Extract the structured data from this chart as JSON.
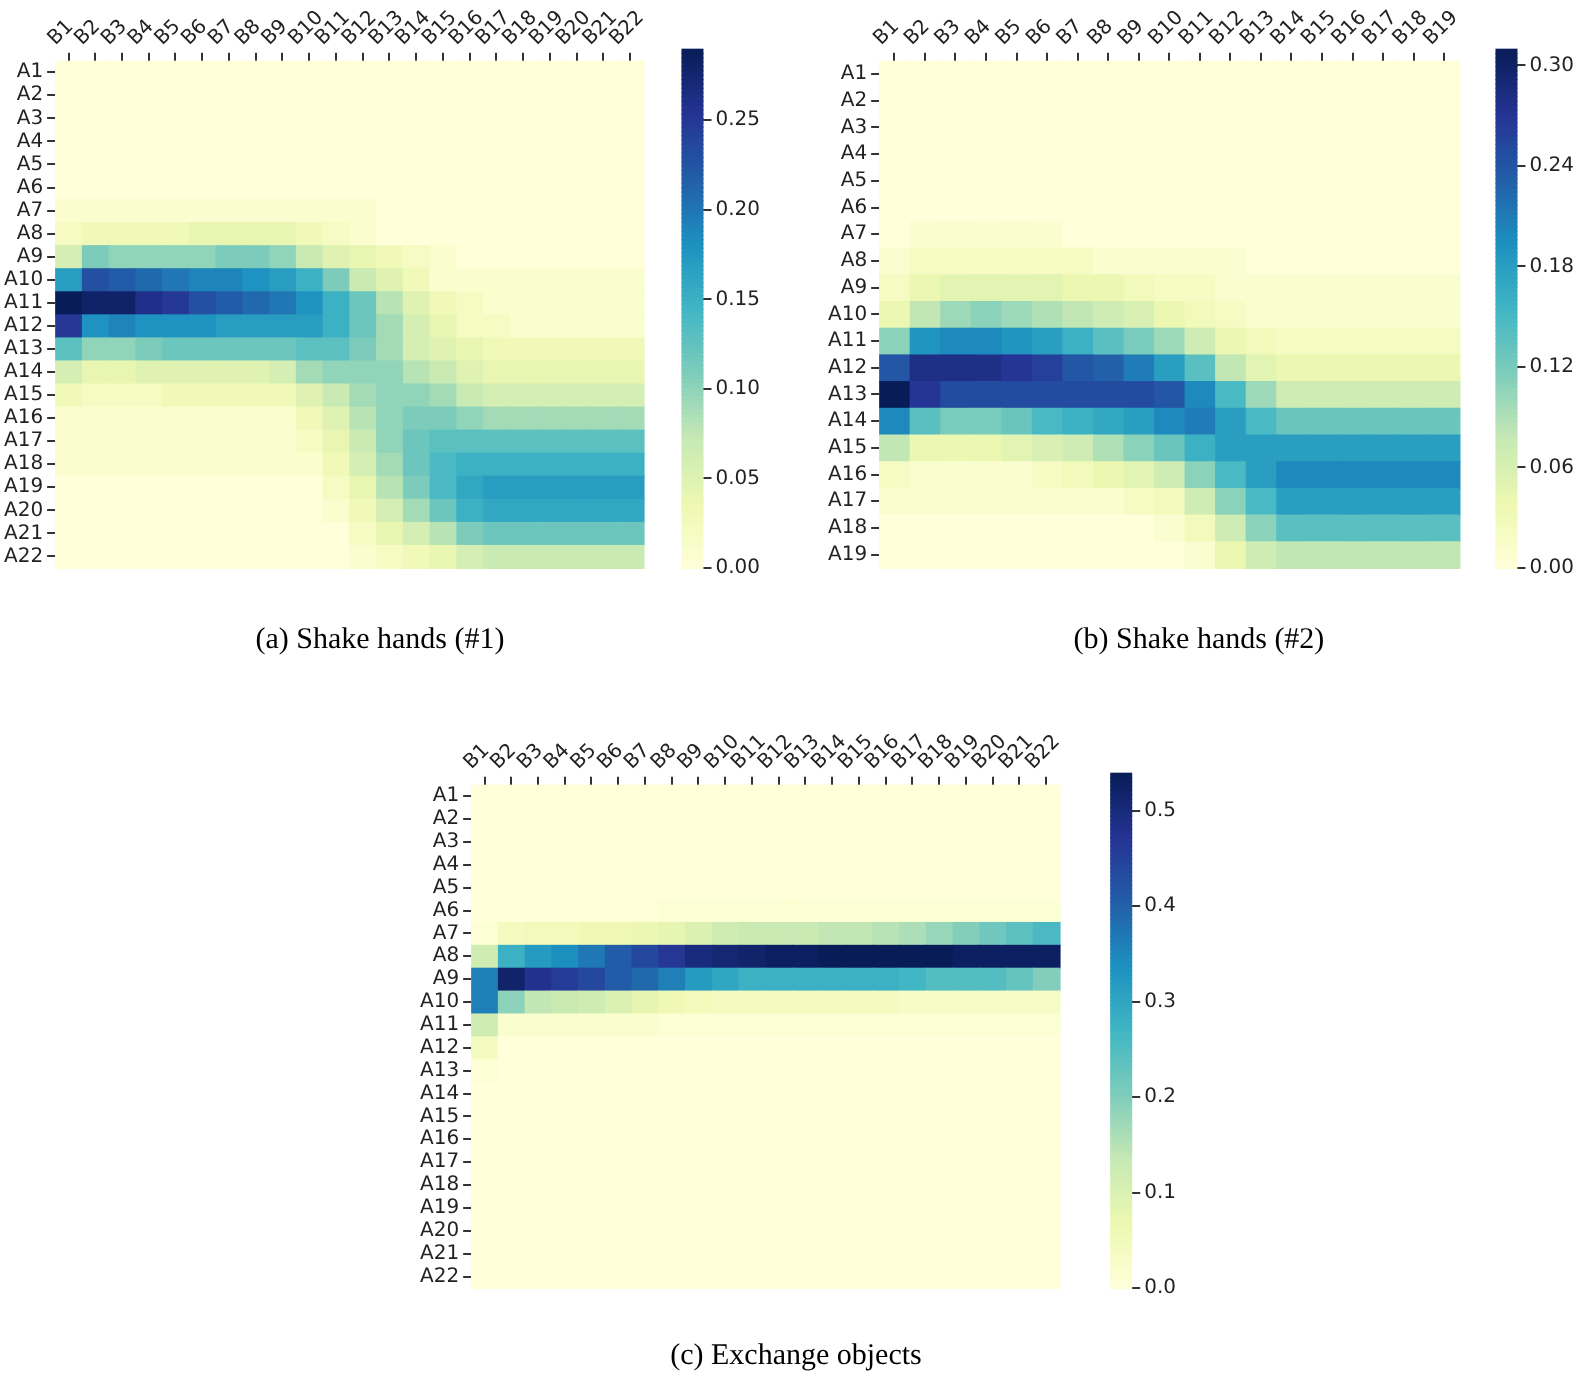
{
  "chart_data": [
    {
      "type": "heatmap",
      "title": "(a)  Shake hands (#1)",
      "categories": [
        "B1",
        "B2",
        "B3",
        "B4",
        "B5",
        "B6",
        "B7",
        "B8",
        "B9",
        "B10",
        "B11",
        "B12",
        "B13",
        "B14",
        "B15",
        "B16",
        "B17",
        "B18",
        "B19",
        "B20",
        "B21",
        "B22"
      ],
      "y_categories": [
        "A1",
        "A2",
        "A3",
        "A4",
        "A5",
        "A6",
        "A7",
        "A8",
        "A9",
        "A10",
        "A11",
        "A12",
        "A13",
        "A14",
        "A15",
        "A16",
        "A17",
        "A18",
        "A19",
        "A20",
        "A21",
        "A22"
      ],
      "clim": [
        0,
        0.29
      ],
      "cticks": [
        {
          "value": 0,
          "label": "0.00"
        },
        {
          "value": 0.05,
          "label": "0.05"
        },
        {
          "value": 0.1,
          "label": "0.10"
        },
        {
          "value": 0.15,
          "label": "0.15"
        },
        {
          "value": 0.2,
          "label": "0.20"
        },
        {
          "value": 0.25,
          "label": "0.25"
        }
      ],
      "cells": [
        [
          0,
          0,
          0,
          0,
          0,
          0,
          0,
          0,
          0,
          0,
          0,
          0,
          0,
          0,
          0,
          0,
          0,
          0,
          0,
          0,
          0,
          0
        ],
        [
          0,
          0,
          0,
          0,
          0,
          0,
          0,
          0,
          0,
          0,
          0,
          0,
          0,
          0,
          0,
          0,
          0,
          0,
          0,
          0,
          0,
          0
        ],
        [
          0,
          0,
          0,
          0,
          0,
          0,
          0,
          0,
          0,
          0,
          0,
          0,
          0,
          0,
          0,
          0,
          0,
          0,
          0,
          0,
          0,
          0
        ],
        [
          0,
          0,
          0,
          0,
          0,
          0,
          0,
          0,
          0,
          0,
          0,
          0,
          0,
          0,
          0,
          0,
          0,
          0,
          0,
          0,
          0,
          0
        ],
        [
          0,
          0,
          0,
          0,
          0,
          0,
          0,
          0,
          0,
          0,
          0,
          0,
          0,
          0,
          0,
          0,
          0,
          0,
          0,
          0,
          0,
          0
        ],
        [
          0,
          0,
          0,
          0,
          0,
          0,
          0,
          0,
          0,
          0,
          0,
          0,
          0,
          0,
          0,
          0,
          0,
          0,
          0,
          0,
          0,
          0
        ],
        [
          0.01,
          0.01,
          0.01,
          0.01,
          0.01,
          0.01,
          0.01,
          0.01,
          0.01,
          0.01,
          0.01,
          0.01,
          0,
          0,
          0,
          0,
          0,
          0,
          0,
          0,
          0,
          0
        ],
        [
          0.02,
          0.03,
          0.03,
          0.03,
          0.03,
          0.04,
          0.04,
          0.04,
          0.04,
          0.03,
          0.02,
          0.01,
          0,
          0,
          0,
          0,
          0,
          0,
          0,
          0,
          0,
          0
        ],
        [
          0.06,
          0.11,
          0.1,
          0.1,
          0.1,
          0.1,
          0.11,
          0.11,
          0.1,
          0.07,
          0.05,
          0.04,
          0.03,
          0.02,
          0.01,
          0,
          0,
          0,
          0,
          0,
          0,
          0
        ],
        [
          0.17,
          0.23,
          0.22,
          0.21,
          0.2,
          0.19,
          0.19,
          0.18,
          0.17,
          0.15,
          0.11,
          0.07,
          0.05,
          0.03,
          0.01,
          0.01,
          0.01,
          0.01,
          0.01,
          0.01,
          0.01,
          0.01
        ],
        [
          0.29,
          0.28,
          0.28,
          0.26,
          0.25,
          0.23,
          0.22,
          0.21,
          0.2,
          0.18,
          0.15,
          0.12,
          0.08,
          0.05,
          0.03,
          0.02,
          0.01,
          0.01,
          0.01,
          0.01,
          0.01,
          0.01
        ],
        [
          0.25,
          0.18,
          0.19,
          0.18,
          0.18,
          0.18,
          0.17,
          0.17,
          0.17,
          0.17,
          0.15,
          0.12,
          0.09,
          0.06,
          0.04,
          0.02,
          0.02,
          0.01,
          0.01,
          0.01,
          0.01,
          0.01
        ],
        [
          0.13,
          0.1,
          0.1,
          0.11,
          0.12,
          0.12,
          0.12,
          0.12,
          0.12,
          0.13,
          0.13,
          0.11,
          0.09,
          0.06,
          0.05,
          0.04,
          0.03,
          0.03,
          0.03,
          0.03,
          0.03,
          0.03
        ],
        [
          0.06,
          0.04,
          0.04,
          0.05,
          0.05,
          0.05,
          0.05,
          0.05,
          0.06,
          0.09,
          0.1,
          0.1,
          0.1,
          0.08,
          0.07,
          0.05,
          0.04,
          0.04,
          0.04,
          0.04,
          0.04,
          0.04
        ],
        [
          0.03,
          0.02,
          0.02,
          0.02,
          0.03,
          0.03,
          0.03,
          0.03,
          0.03,
          0.05,
          0.07,
          0.09,
          0.1,
          0.1,
          0.09,
          0.07,
          0.06,
          0.06,
          0.06,
          0.06,
          0.06,
          0.06
        ],
        [
          0.01,
          0.01,
          0.01,
          0.01,
          0.01,
          0.01,
          0.01,
          0.01,
          0.01,
          0.03,
          0.05,
          0.08,
          0.1,
          0.11,
          0.11,
          0.1,
          0.09,
          0.09,
          0.09,
          0.09,
          0.09,
          0.09
        ],
        [
          0.01,
          0.01,
          0.01,
          0.01,
          0.01,
          0.01,
          0.01,
          0.01,
          0.01,
          0.02,
          0.04,
          0.07,
          0.1,
          0.12,
          0.13,
          0.13,
          0.13,
          0.13,
          0.13,
          0.13,
          0.13,
          0.13
        ],
        [
          0.01,
          0.01,
          0.01,
          0.01,
          0.01,
          0.01,
          0.01,
          0.01,
          0.01,
          0.01,
          0.03,
          0.06,
          0.09,
          0.12,
          0.14,
          0.15,
          0.15,
          0.15,
          0.15,
          0.15,
          0.15,
          0.15
        ],
        [
          0,
          0,
          0,
          0,
          0,
          0,
          0,
          0,
          0,
          0,
          0.02,
          0.04,
          0.08,
          0.11,
          0.14,
          0.16,
          0.17,
          0.17,
          0.17,
          0.17,
          0.17,
          0.17
        ],
        [
          0,
          0,
          0,
          0,
          0,
          0,
          0,
          0,
          0,
          0,
          0.01,
          0.03,
          0.06,
          0.09,
          0.12,
          0.15,
          0.16,
          0.16,
          0.16,
          0.16,
          0.16,
          0.16
        ],
        [
          0,
          0,
          0,
          0,
          0,
          0,
          0,
          0,
          0,
          0,
          0,
          0.02,
          0.04,
          0.06,
          0.08,
          0.11,
          0.12,
          0.12,
          0.12,
          0.12,
          0.12,
          0.12
        ],
        [
          0,
          0,
          0,
          0,
          0,
          0,
          0,
          0,
          0,
          0,
          0,
          0.01,
          0.02,
          0.03,
          0.04,
          0.06,
          0.07,
          0.07,
          0.07,
          0.07,
          0.07,
          0.07
        ]
      ]
    },
    {
      "type": "heatmap",
      "title": "(b)  Shake hands (#2)",
      "categories": [
        "B1",
        "B2",
        "B3",
        "B4",
        "B5",
        "B6",
        "B7",
        "B8",
        "B9",
        "B10",
        "B11",
        "B12",
        "B13",
        "B14",
        "B15",
        "B16",
        "B17",
        "B18",
        "B19"
      ],
      "y_categories": [
        "A1",
        "A2",
        "A3",
        "A4",
        "A5",
        "A6",
        "A7",
        "A8",
        "A9",
        "A10",
        "A11",
        "A12",
        "A13",
        "A14",
        "A15",
        "A16",
        "A17",
        "A18",
        "A19"
      ],
      "clim": [
        0,
        0.31
      ],
      "cticks": [
        {
          "value": 0,
          "label": "0.00"
        },
        {
          "value": 0.06,
          "label": "0.06"
        },
        {
          "value": 0.12,
          "label": "0.12"
        },
        {
          "value": 0.18,
          "label": "0.18"
        },
        {
          "value": 0.24,
          "label": "0.24"
        },
        {
          "value": 0.3,
          "label": "0.30"
        }
      ],
      "cells": [
        [
          0,
          0,
          0,
          0,
          0,
          0,
          0,
          0,
          0,
          0,
          0,
          0,
          0,
          0,
          0,
          0,
          0,
          0,
          0
        ],
        [
          0,
          0,
          0,
          0,
          0,
          0,
          0,
          0,
          0,
          0,
          0,
          0,
          0,
          0,
          0,
          0,
          0,
          0,
          0
        ],
        [
          0,
          0,
          0,
          0,
          0,
          0,
          0,
          0,
          0,
          0,
          0,
          0,
          0,
          0,
          0,
          0,
          0,
          0,
          0
        ],
        [
          0,
          0,
          0,
          0,
          0,
          0,
          0,
          0,
          0,
          0,
          0,
          0,
          0,
          0,
          0,
          0,
          0,
          0,
          0
        ],
        [
          0,
          0,
          0,
          0,
          0,
          0,
          0,
          0,
          0,
          0,
          0,
          0,
          0,
          0,
          0,
          0,
          0,
          0,
          0
        ],
        [
          0,
          0,
          0,
          0,
          0,
          0,
          0,
          0,
          0,
          0,
          0,
          0,
          0,
          0,
          0,
          0,
          0,
          0,
          0
        ],
        [
          0,
          0.01,
          0.01,
          0.01,
          0.01,
          0.01,
          0,
          0,
          0,
          0,
          0,
          0,
          0,
          0,
          0,
          0,
          0,
          0,
          0
        ],
        [
          0.01,
          0.02,
          0.02,
          0.02,
          0.02,
          0.02,
          0.02,
          0.01,
          0.01,
          0.01,
          0.01,
          0.01,
          0,
          0,
          0,
          0,
          0,
          0,
          0
        ],
        [
          0.02,
          0.04,
          0.05,
          0.05,
          0.05,
          0.05,
          0.04,
          0.04,
          0.03,
          0.02,
          0.02,
          0.01,
          0.01,
          0.01,
          0.01,
          0.01,
          0.01,
          0.01,
          0.01
        ],
        [
          0.04,
          0.08,
          0.1,
          0.11,
          0.1,
          0.09,
          0.08,
          0.07,
          0.06,
          0.04,
          0.03,
          0.02,
          0.01,
          0.01,
          0.01,
          0.01,
          0.01,
          0.01,
          0.01
        ],
        [
          0.11,
          0.19,
          0.2,
          0.2,
          0.19,
          0.18,
          0.16,
          0.14,
          0.12,
          0.1,
          0.07,
          0.04,
          0.03,
          0.02,
          0.02,
          0.02,
          0.02,
          0.02,
          0.02
        ],
        [
          0.24,
          0.28,
          0.28,
          0.28,
          0.27,
          0.26,
          0.24,
          0.23,
          0.21,
          0.18,
          0.14,
          0.08,
          0.05,
          0.04,
          0.04,
          0.04,
          0.04,
          0.04,
          0.04
        ],
        [
          0.31,
          0.27,
          0.25,
          0.25,
          0.25,
          0.25,
          0.25,
          0.25,
          0.25,
          0.24,
          0.2,
          0.15,
          0.1,
          0.07,
          0.07,
          0.07,
          0.07,
          0.07,
          0.07
        ],
        [
          0.2,
          0.14,
          0.12,
          0.12,
          0.13,
          0.15,
          0.16,
          0.17,
          0.18,
          0.2,
          0.21,
          0.18,
          0.15,
          0.13,
          0.13,
          0.13,
          0.13,
          0.13,
          0.13
        ],
        [
          0.08,
          0.04,
          0.04,
          0.04,
          0.05,
          0.06,
          0.07,
          0.09,
          0.11,
          0.13,
          0.16,
          0.18,
          0.18,
          0.18,
          0.18,
          0.18,
          0.18,
          0.18,
          0.18
        ],
        [
          0.02,
          0.01,
          0.01,
          0.01,
          0.01,
          0.02,
          0.03,
          0.04,
          0.05,
          0.07,
          0.11,
          0.15,
          0.18,
          0.2,
          0.2,
          0.2,
          0.2,
          0.2,
          0.2
        ],
        [
          0.01,
          0.01,
          0.01,
          0.01,
          0.01,
          0.01,
          0.01,
          0.01,
          0.02,
          0.03,
          0.07,
          0.11,
          0.15,
          0.18,
          0.18,
          0.18,
          0.18,
          0.18,
          0.18
        ],
        [
          0,
          0,
          0,
          0,
          0,
          0,
          0,
          0,
          0,
          0.01,
          0.03,
          0.07,
          0.11,
          0.14,
          0.14,
          0.14,
          0.14,
          0.14,
          0.14
        ],
        [
          0,
          0,
          0,
          0,
          0,
          0,
          0,
          0,
          0,
          0,
          0.01,
          0.04,
          0.07,
          0.08,
          0.08,
          0.08,
          0.08,
          0.08,
          0.08
        ]
      ]
    },
    {
      "type": "heatmap",
      "title": "(c)  Exchange objects",
      "categories": [
        "B1",
        "B2",
        "B3",
        "B4",
        "B5",
        "B6",
        "B7",
        "B8",
        "B9",
        "B10",
        "B11",
        "B12",
        "B13",
        "B14",
        "B15",
        "B16",
        "B17",
        "B18",
        "B19",
        "B20",
        "B21",
        "B22"
      ],
      "y_categories": [
        "A1",
        "A2",
        "A3",
        "A4",
        "A5",
        "A6",
        "A7",
        "A8",
        "A9",
        "A10",
        "A11",
        "A12",
        "A13",
        "A14",
        "A15",
        "A16",
        "A17",
        "A18",
        "A19",
        "A20",
        "A21",
        "A22"
      ],
      "clim": [
        0,
        0.54
      ],
      "cticks": [
        {
          "value": 0,
          "label": "0.0"
        },
        {
          "value": 0.1,
          "label": "0.1"
        },
        {
          "value": 0.2,
          "label": "0.2"
        },
        {
          "value": 0.3,
          "label": "0.3"
        },
        {
          "value": 0.4,
          "label": "0.4"
        },
        {
          "value": 0.5,
          "label": "0.5"
        }
      ],
      "cells": [
        [
          0,
          0,
          0,
          0,
          0,
          0,
          0,
          0,
          0,
          0,
          0,
          0,
          0,
          0,
          0,
          0,
          0,
          0,
          0,
          0,
          0,
          0
        ],
        [
          0,
          0,
          0,
          0,
          0,
          0,
          0,
          0,
          0,
          0,
          0,
          0,
          0,
          0,
          0,
          0,
          0,
          0,
          0,
          0,
          0,
          0
        ],
        [
          0,
          0,
          0,
          0,
          0,
          0,
          0,
          0,
          0,
          0,
          0,
          0,
          0,
          0,
          0,
          0,
          0,
          0,
          0,
          0,
          0,
          0
        ],
        [
          0,
          0,
          0,
          0,
          0,
          0,
          0,
          0,
          0,
          0,
          0,
          0,
          0,
          0,
          0,
          0,
          0,
          0,
          0,
          0,
          0,
          0
        ],
        [
          0,
          0,
          0,
          0,
          0,
          0,
          0,
          0,
          0,
          0,
          0,
          0,
          0,
          0,
          0,
          0,
          0,
          0,
          0,
          0,
          0,
          0
        ],
        [
          0,
          0,
          0,
          0,
          0,
          0,
          0,
          0.01,
          0.01,
          0.01,
          0.01,
          0.01,
          0.01,
          0.01,
          0.01,
          0.01,
          0.01,
          0.01,
          0.01,
          0.01,
          0.01,
          0.01
        ],
        [
          0.01,
          0.04,
          0.05,
          0.05,
          0.06,
          0.06,
          0.07,
          0.08,
          0.1,
          0.12,
          0.13,
          0.13,
          0.13,
          0.14,
          0.14,
          0.15,
          0.16,
          0.18,
          0.2,
          0.22,
          0.24,
          0.26
        ],
        [
          0.12,
          0.28,
          0.32,
          0.34,
          0.37,
          0.41,
          0.44,
          0.47,
          0.5,
          0.51,
          0.52,
          0.53,
          0.53,
          0.54,
          0.54,
          0.54,
          0.54,
          0.54,
          0.53,
          0.53,
          0.53,
          0.53
        ],
        [
          0.36,
          0.52,
          0.48,
          0.46,
          0.44,
          0.41,
          0.39,
          0.36,
          0.32,
          0.3,
          0.28,
          0.28,
          0.28,
          0.28,
          0.28,
          0.28,
          0.27,
          0.25,
          0.25,
          0.25,
          0.23,
          0.2
        ],
        [
          0.36,
          0.19,
          0.14,
          0.13,
          0.12,
          0.1,
          0.08,
          0.06,
          0.05,
          0.04,
          0.04,
          0.04,
          0.04,
          0.04,
          0.04,
          0.04,
          0.03,
          0.03,
          0.03,
          0.03,
          0.03,
          0.03
        ],
        [
          0.12,
          0.02,
          0.02,
          0.02,
          0.02,
          0.02,
          0.02,
          0.01,
          0.01,
          0.01,
          0.01,
          0.01,
          0.01,
          0.01,
          0.01,
          0.01,
          0.01,
          0.01,
          0.01,
          0.01,
          0.01,
          0.01
        ],
        [
          0.04,
          0,
          0,
          0,
          0,
          0,
          0,
          0,
          0,
          0,
          0,
          0,
          0,
          0,
          0,
          0,
          0,
          0,
          0,
          0,
          0,
          0
        ],
        [
          0.01,
          0,
          0,
          0,
          0,
          0,
          0,
          0,
          0,
          0,
          0,
          0,
          0,
          0,
          0,
          0,
          0,
          0,
          0,
          0,
          0,
          0
        ],
        [
          0,
          0,
          0,
          0,
          0,
          0,
          0,
          0,
          0,
          0,
          0,
          0,
          0,
          0,
          0,
          0,
          0,
          0,
          0,
          0,
          0,
          0
        ],
        [
          0,
          0,
          0,
          0,
          0,
          0,
          0,
          0,
          0,
          0,
          0,
          0,
          0,
          0,
          0,
          0,
          0,
          0,
          0,
          0,
          0,
          0
        ],
        [
          0,
          0,
          0,
          0,
          0,
          0,
          0,
          0,
          0,
          0,
          0,
          0,
          0,
          0,
          0,
          0,
          0,
          0,
          0,
          0,
          0,
          0
        ],
        [
          0,
          0,
          0,
          0,
          0,
          0,
          0,
          0,
          0,
          0,
          0,
          0,
          0,
          0,
          0,
          0,
          0,
          0,
          0,
          0,
          0,
          0
        ],
        [
          0,
          0,
          0,
          0,
          0,
          0,
          0,
          0,
          0,
          0,
          0,
          0,
          0,
          0,
          0,
          0,
          0,
          0,
          0,
          0,
          0,
          0
        ],
        [
          0,
          0,
          0,
          0,
          0,
          0,
          0,
          0,
          0,
          0,
          0,
          0,
          0,
          0,
          0,
          0,
          0,
          0,
          0,
          0,
          0,
          0
        ],
        [
          0,
          0,
          0,
          0,
          0,
          0,
          0,
          0,
          0,
          0,
          0,
          0,
          0,
          0,
          0,
          0,
          0,
          0,
          0,
          0,
          0,
          0
        ],
        [
          0,
          0,
          0,
          0,
          0,
          0,
          0,
          0,
          0,
          0,
          0,
          0,
          0,
          0,
          0,
          0,
          0,
          0,
          0,
          0,
          0,
          0
        ],
        [
          0,
          0,
          0,
          0,
          0,
          0,
          0,
          0,
          0,
          0,
          0,
          0,
          0,
          0,
          0,
          0,
          0,
          0,
          0,
          0,
          0,
          0
        ]
      ]
    }
  ]
}
